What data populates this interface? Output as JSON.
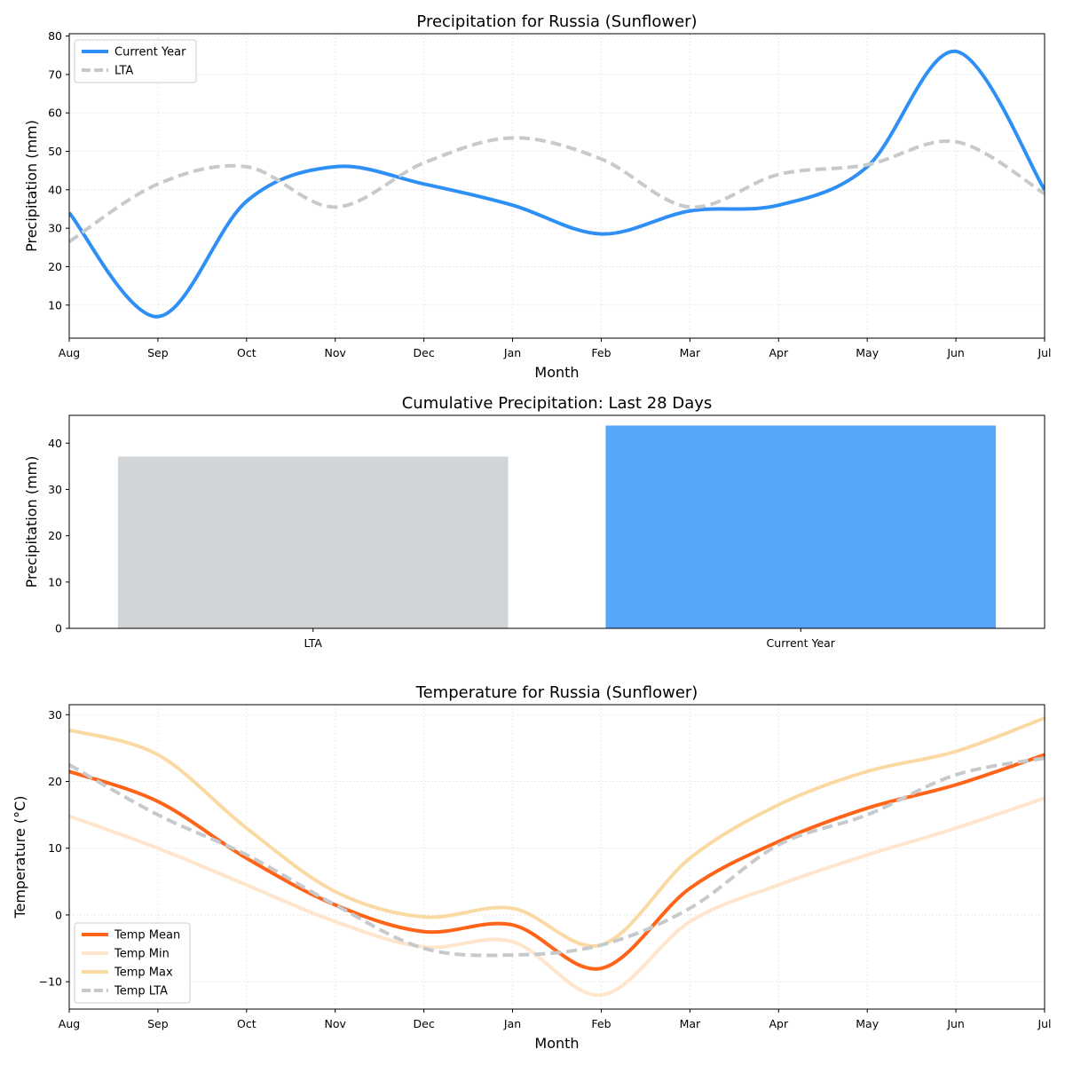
{
  "chart_data": [
    {
      "type": "line",
      "title": "Precipitation for Russia (Sunflower)",
      "xlabel": "Month",
      "ylabel": "Precipitation (mm)",
      "categories": [
        "Aug",
        "Sep",
        "Oct",
        "Nov",
        "Dec",
        "Jan",
        "Feb",
        "Mar",
        "Apr",
        "May",
        "Jun",
        "Jul"
      ],
      "ylim": [
        1.4,
        80.6
      ],
      "yticks": [
        10,
        20,
        30,
        40,
        50,
        60,
        70,
        80
      ],
      "grid": true,
      "legend": "top-left",
      "series": [
        {
          "name": "Current Year",
          "color": "#2e8ff5",
          "dash": false,
          "width": 4,
          "values": [
            34,
            7,
            37,
            46,
            41.5,
            36,
            28.5,
            34.5,
            36,
            46,
            76,
            40
          ]
        },
        {
          "name": "LTA",
          "color": "#c6cacc",
          "dash": true,
          "width": 4,
          "values": [
            26.5,
            41.5,
            46,
            35.5,
            47,
            53.5,
            48,
            35.5,
            44,
            46.5,
            52.5,
            39
          ]
        }
      ]
    },
    {
      "type": "bar",
      "title": "Cumulative Precipitation: Last 28 Days",
      "xlabel": "",
      "ylabel": "Precipitation (mm)",
      "categories": [
        "LTA",
        "Current Year"
      ],
      "values": [
        37.1,
        43.8
      ],
      "colors": [
        "#d1d5d8",
        "#58a6fa"
      ],
      "ylim": [
        0,
        46
      ],
      "yticks": [
        0,
        10,
        20,
        30,
        40
      ],
      "grid": false
    },
    {
      "type": "line",
      "title": "Temperature for Russia (Sunflower)",
      "xlabel": "Month",
      "ylabel": "Temperature (°C)",
      "categories": [
        "Aug",
        "Sep",
        "Oct",
        "Nov",
        "Dec",
        "Jan",
        "Feb",
        "Mar",
        "Apr",
        "May",
        "Jun",
        "Jul"
      ],
      "ylim": [
        -14.1,
        31.5
      ],
      "yticks": [
        -10,
        0,
        10,
        20,
        30
      ],
      "grid": true,
      "legend": "bottom-left",
      "series": [
        {
          "name": "Temp Mean",
          "color": "#ff6418",
          "dash": false,
          "width": 4,
          "values": [
            21.5,
            17,
            8.5,
            1.5,
            -2.5,
            -1.5,
            -8,
            4,
            11,
            16,
            19.5,
            24
          ]
        },
        {
          "name": "Temp Min",
          "color": "#ffe5cc",
          "dash": false,
          "width": 4,
          "values": [
            14.8,
            10,
            4.5,
            -1,
            -4.8,
            -4,
            -12,
            -1,
            4.5,
            9,
            13,
            17.5
          ]
        },
        {
          "name": "Temp Max",
          "color": "#fbd9a3",
          "dash": false,
          "width": 4,
          "values": [
            27.7,
            24,
            13,
            3.5,
            -0.3,
            1,
            -4.5,
            8.5,
            16.5,
            21.5,
            24.5,
            29.5
          ]
        },
        {
          "name": "Temp LTA",
          "color": "#c6cacc",
          "dash": true,
          "width": 4,
          "values": [
            22.5,
            15,
            9,
            1.5,
            -5,
            -6,
            -4.5,
            1,
            10.5,
            15,
            21,
            23.5
          ]
        }
      ]
    }
  ]
}
